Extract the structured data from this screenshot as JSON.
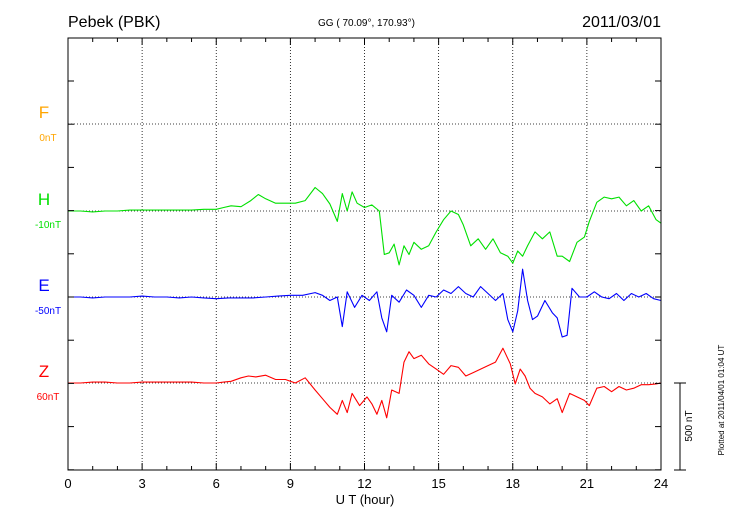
{
  "header": {
    "station": "Pebek (PBK)",
    "coords": "GG ( 70.09°, 170.93°)",
    "date": "2011/03/01"
  },
  "footer": {
    "plotted": "Plotted at 2011/04/01 01:04 UT"
  },
  "scale": {
    "label": "500 nT",
    "value_nT": 500
  },
  "chart_data": {
    "type": "line",
    "title": "",
    "xlabel": "U T (hour)",
    "xlim": [
      0,
      24
    ],
    "xticks": [
      0,
      3,
      6,
      9,
      12,
      15,
      18,
      21,
      24
    ],
    "grid": true,
    "series": [
      {
        "name": "F",
        "base_label": "0nT",
        "color": "#ffa500",
        "x": [],
        "y": []
      },
      {
        "name": "H",
        "base_label": "-10nT",
        "color": "#00e000",
        "x": [
          0,
          0.5,
          1,
          1.5,
          2,
          2.5,
          3,
          3.5,
          4,
          4.5,
          5,
          5.5,
          6,
          6.3,
          6.6,
          7,
          7.4,
          7.7,
          8,
          8.4,
          8.8,
          9.2,
          9.6,
          10,
          10.3,
          10.6,
          10.9,
          11.1,
          11.3,
          11.5,
          11.7,
          12,
          12.3,
          12.6,
          12.8,
          13,
          13.2,
          13.4,
          13.6,
          13.8,
          14,
          14.3,
          14.6,
          14.9,
          15.2,
          15.5,
          15.8,
          16,
          16.3,
          16.6,
          16.9,
          17.2,
          17.5,
          17.8,
          18,
          18.2,
          18.4,
          18.6,
          18.9,
          19.2,
          19.5,
          19.8,
          20,
          20.3,
          20.6,
          20.9,
          21.1,
          21.4,
          21.7,
          22,
          22.3,
          22.6,
          22.9,
          23.2,
          23.5,
          23.8,
          24
        ],
        "y": [
          0,
          0,
          -5,
          0,
          0,
          5,
          5,
          5,
          5,
          5,
          5,
          10,
          10,
          20,
          30,
          25,
          60,
          95,
          70,
          45,
          45,
          45,
          60,
          135,
          100,
          40,
          -60,
          100,
          0,
          110,
          45,
          20,
          35,
          0,
          -250,
          -240,
          -190,
          -310,
          -200,
          -250,
          -180,
          -220,
          -200,
          -120,
          -50,
          0,
          -20,
          -80,
          -200,
          -160,
          -220,
          -160,
          -240,
          -260,
          -300,
          -230,
          -260,
          -200,
          -120,
          -160,
          -120,
          -260,
          -260,
          -290,
          -180,
          -150,
          -60,
          50,
          80,
          70,
          80,
          30,
          60,
          0,
          30,
          -50,
          -70
        ]
      },
      {
        "name": "E",
        "base_label": "-50nT",
        "color": "#0000ff",
        "x": [
          0,
          0.5,
          1,
          1.5,
          2,
          2.5,
          3,
          3.5,
          4,
          4.5,
          5,
          5.5,
          6,
          6.5,
          7,
          7.5,
          8,
          8.5,
          9,
          9.5,
          10,
          10.3,
          10.6,
          10.9,
          11.1,
          11.3,
          11.6,
          11.9,
          12.2,
          12.5,
          12.7,
          12.9,
          13.1,
          13.4,
          13.7,
          14,
          14.3,
          14.6,
          14.9,
          15.2,
          15.5,
          15.8,
          16.1,
          16.4,
          16.7,
          17,
          17.3,
          17.6,
          17.8,
          18,
          18.2,
          18.4,
          18.6,
          18.8,
          19,
          19.3,
          19.6,
          19.8,
          20,
          20.2,
          20.4,
          20.7,
          21,
          21.3,
          21.6,
          21.9,
          22.2,
          22.5,
          22.8,
          23.1,
          23.4,
          23.7,
          24
        ],
        "y": [
          0,
          0,
          -5,
          0,
          0,
          0,
          5,
          0,
          0,
          -5,
          0,
          -5,
          -10,
          -5,
          -5,
          -5,
          0,
          5,
          10,
          10,
          25,
          10,
          -20,
          0,
          -170,
          30,
          -60,
          10,
          -20,
          30,
          -120,
          -200,
          10,
          -30,
          40,
          10,
          -60,
          10,
          0,
          40,
          20,
          60,
          20,
          0,
          60,
          20,
          -20,
          20,
          -130,
          -200,
          -80,
          160,
          -20,
          -130,
          -110,
          -20,
          -90,
          -120,
          -230,
          -220,
          50,
          0,
          0,
          30,
          0,
          -10,
          20,
          -20,
          20,
          0,
          20,
          -10,
          -20
        ]
      },
      {
        "name": "Z",
        "base_label": "60nT",
        "color": "#ff0000",
        "x": [
          0,
          0.5,
          1,
          1.5,
          2,
          2.5,
          3,
          3.5,
          4,
          4.5,
          5,
          5.5,
          6,
          6.3,
          6.6,
          7,
          7.3,
          7.6,
          8,
          8.4,
          8.8,
          9.2,
          9.6,
          10,
          10.3,
          10.6,
          10.9,
          11.1,
          11.3,
          11.5,
          11.8,
          12.1,
          12.3,
          12.5,
          12.7,
          12.9,
          13.1,
          13.4,
          13.6,
          13.8,
          14,
          14.3,
          14.6,
          14.9,
          15.2,
          15.5,
          15.8,
          16.1,
          16.4,
          16.7,
          17,
          17.3,
          17.6,
          17.9,
          18.1,
          18.3,
          18.5,
          18.7,
          18.9,
          19.2,
          19.5,
          19.8,
          20,
          20.3,
          20.6,
          20.9,
          21.1,
          21.4,
          21.7,
          22,
          22.3,
          22.6,
          22.9,
          23.2,
          23.5,
          23.8,
          24
        ],
        "y": [
          0,
          0,
          5,
          5,
          0,
          0,
          5,
          5,
          5,
          5,
          5,
          0,
          0,
          5,
          10,
          30,
          40,
          35,
          45,
          20,
          20,
          0,
          30,
          -40,
          -90,
          -140,
          -180,
          -100,
          -170,
          -60,
          -130,
          -80,
          -120,
          -180,
          -100,
          -200,
          -40,
          -60,
          120,
          180,
          140,
          160,
          110,
          80,
          50,
          100,
          90,
          40,
          60,
          80,
          100,
          120,
          200,
          110,
          -5,
          80,
          40,
          -30,
          -60,
          -80,
          -120,
          -90,
          -170,
          -60,
          -80,
          -100,
          -130,
          -30,
          -20,
          -50,
          -20,
          -40,
          -30,
          -10,
          -10,
          -5,
          0
        ]
      }
    ]
  }
}
